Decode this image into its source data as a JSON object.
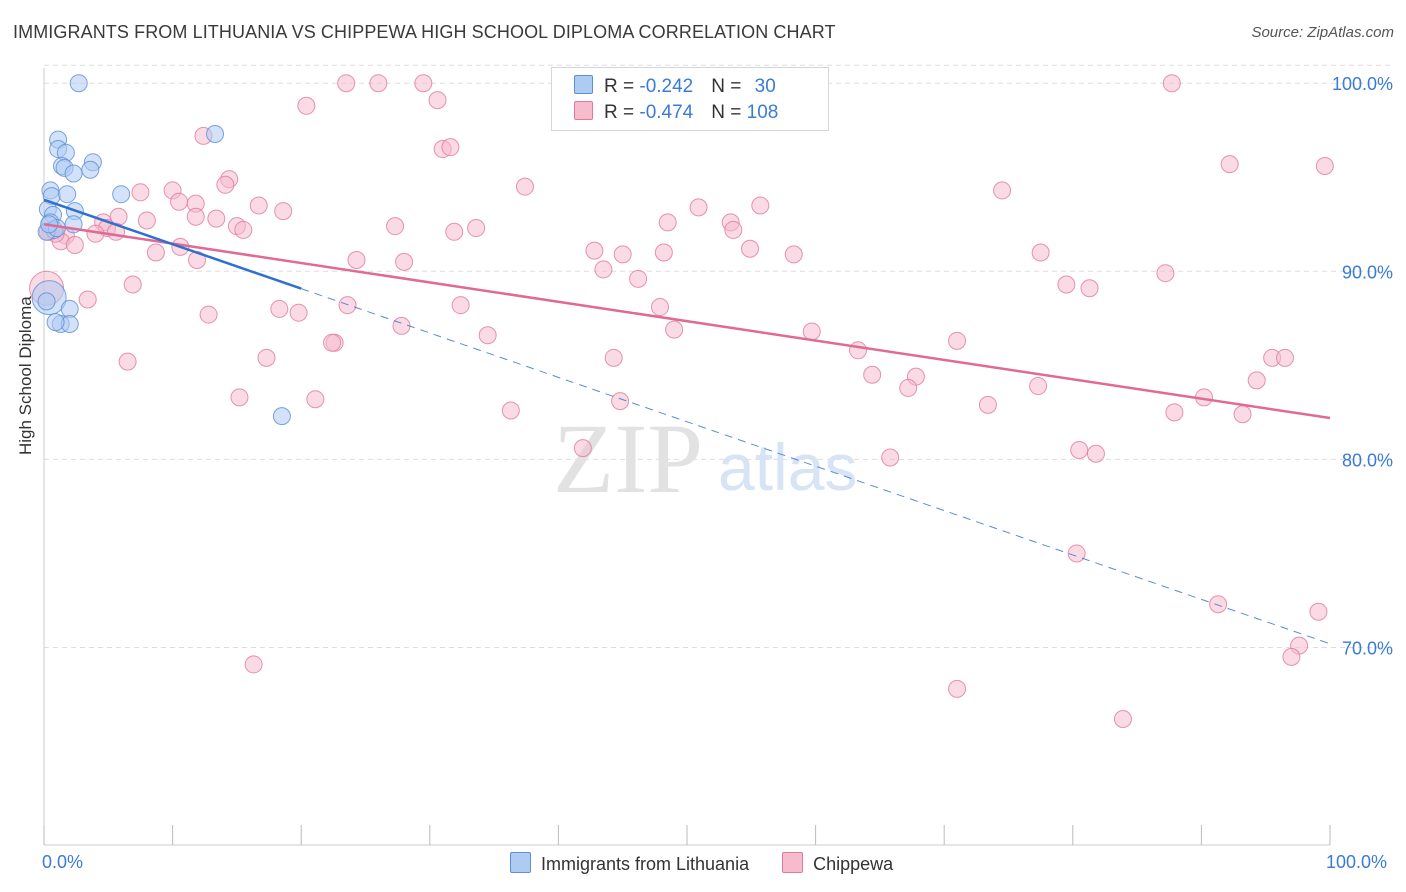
{
  "title": "IMMIGRANTS FROM LITHUANIA VS CHIPPEWA HIGH SCHOOL DIPLOMA CORRELATION CHART",
  "source": "Source: ZipAtlas.com",
  "watermark": {
    "zip": "ZIP",
    "atlas": "atlas"
  },
  "legend": {
    "r_label": "R = ",
    "n_label": "N = ",
    "series": [
      {
        "name": "Immigrants from Lithuania",
        "r": "-0.242",
        "n": "30"
      },
      {
        "name": "Chippewa",
        "r": "-0.474",
        "n": "108"
      }
    ]
  },
  "colors": {
    "blue_fill": "#aecbf2",
    "blue_stroke": "#5b8fd6",
    "blue_line": "#2f6fcf",
    "pink_fill": "#f6bccd",
    "pink_stroke": "#e07a9b",
    "pink_line": "#e06a93",
    "grid": "#dddddd",
    "tick_text": "#3a7bd5"
  },
  "chart_data": {
    "type": "scatter",
    "title": "IMMIGRANTS FROM LITHUANIA VS CHIPPEWA HIGH SCHOOL DIPLOMA CORRELATION CHART",
    "xlabel": "",
    "ylabel": "High School Diploma",
    "xlim": [
      0,
      100
    ],
    "ylim": [
      59.5,
      101.5
    ],
    "x_tick_labels": [
      "0.0%",
      "100.0%"
    ],
    "y_ticks": [
      70,
      80,
      90,
      100
    ],
    "y_tick_labels": [
      "70.0%",
      "80.0%",
      "90.0%",
      "100.0%"
    ],
    "grid": true,
    "legend_position": "top-center",
    "series": [
      {
        "name": "Immigrants from Lithuania",
        "r": -0.242,
        "n": 30,
        "trend": {
          "x0": 0,
          "y0": 93.8,
          "x1": 100,
          "y1": 70.2,
          "solid_until_x": 20
        },
        "points": [
          {
            "x": 2.7,
            "y": 100.0
          },
          {
            "x": 13.3,
            "y": 97.3
          },
          {
            "x": 1.1,
            "y": 97.0
          },
          {
            "x": 1.1,
            "y": 96.5
          },
          {
            "x": 1.7,
            "y": 96.3
          },
          {
            "x": 1.4,
            "y": 95.6
          },
          {
            "x": 1.6,
            "y": 95.5
          },
          {
            "x": 3.8,
            "y": 95.8
          },
          {
            "x": 3.6,
            "y": 95.4
          },
          {
            "x": 2.3,
            "y": 95.2
          },
          {
            "x": 0.5,
            "y": 94.3
          },
          {
            "x": 0.6,
            "y": 94.0
          },
          {
            "x": 1.8,
            "y": 94.1
          },
          {
            "x": 6.0,
            "y": 94.1
          },
          {
            "x": 0.3,
            "y": 93.3
          },
          {
            "x": 0.7,
            "y": 93.0
          },
          {
            "x": 2.4,
            "y": 93.2
          },
          {
            "x": 0.5,
            "y": 92.6
          },
          {
            "x": 0.8,
            "y": 92.2
          },
          {
            "x": 2.3,
            "y": 92.5
          },
          {
            "x": 0.2,
            "y": 92.1
          },
          {
            "x": 0.4,
            "y": 88.6,
            "size": "large"
          },
          {
            "x": 0.2,
            "y": 88.4
          },
          {
            "x": 2.0,
            "y": 88.0
          },
          {
            "x": 1.3,
            "y": 87.2
          },
          {
            "x": 2.0,
            "y": 87.2
          },
          {
            "x": 0.9,
            "y": 87.3
          },
          {
            "x": 18.5,
            "y": 82.3
          },
          {
            "x": 1.0,
            "y": 92.3
          },
          {
            "x": 0.4,
            "y": 92.5
          }
        ]
      },
      {
        "name": "Chippewa",
        "r": -0.474,
        "n": 108,
        "trend": {
          "x0": 0,
          "y0": 92.5,
          "x1": 100,
          "y1": 82.2
        },
        "points": [
          {
            "x": 23.5,
            "y": 100.0
          },
          {
            "x": 26.0,
            "y": 100.0
          },
          {
            "x": 29.5,
            "y": 100.0
          },
          {
            "x": 87.7,
            "y": 100.0
          },
          {
            "x": 30.6,
            "y": 99.1
          },
          {
            "x": 20.4,
            "y": 98.8
          },
          {
            "x": 12.4,
            "y": 97.2
          },
          {
            "x": 31.0,
            "y": 96.5
          },
          {
            "x": 31.6,
            "y": 96.6
          },
          {
            "x": 92.2,
            "y": 95.7
          },
          {
            "x": 99.6,
            "y": 95.6
          },
          {
            "x": 14.4,
            "y": 94.9
          },
          {
            "x": 14.1,
            "y": 94.6
          },
          {
            "x": 37.4,
            "y": 94.5
          },
          {
            "x": 10.0,
            "y": 94.3
          },
          {
            "x": 74.5,
            "y": 94.3
          },
          {
            "x": 7.5,
            "y": 94.2
          },
          {
            "x": 10.5,
            "y": 93.7
          },
          {
            "x": 11.8,
            "y": 93.6
          },
          {
            "x": 16.7,
            "y": 93.5
          },
          {
            "x": 18.6,
            "y": 93.2
          },
          {
            "x": 50.9,
            "y": 93.4
          },
          {
            "x": 55.7,
            "y": 93.5
          },
          {
            "x": 13.4,
            "y": 92.8
          },
          {
            "x": 5.8,
            "y": 92.9
          },
          {
            "x": 8.0,
            "y": 92.7
          },
          {
            "x": 4.6,
            "y": 92.6
          },
          {
            "x": 11.8,
            "y": 92.9
          },
          {
            "x": 48.5,
            "y": 92.6
          },
          {
            "x": 53.4,
            "y": 92.6
          },
          {
            "x": 15.0,
            "y": 92.4
          },
          {
            "x": 27.3,
            "y": 92.4
          },
          {
            "x": 31.9,
            "y": 92.1
          },
          {
            "x": 33.6,
            "y": 92.3
          },
          {
            "x": 4.9,
            "y": 92.3
          },
          {
            "x": 5.6,
            "y": 92.1
          },
          {
            "x": 4.0,
            "y": 92.0
          },
          {
            "x": 15.5,
            "y": 92.2
          },
          {
            "x": 53.6,
            "y": 92.2
          },
          {
            "x": 1.7,
            "y": 91.9
          },
          {
            "x": 1.3,
            "y": 91.6
          },
          {
            "x": 2.4,
            "y": 91.4
          },
          {
            "x": 0.5,
            "y": 92.1
          },
          {
            "x": 0.9,
            "y": 92.0
          },
          {
            "x": 10.6,
            "y": 91.3
          },
          {
            "x": 42.8,
            "y": 91.1
          },
          {
            "x": 48.2,
            "y": 91.0
          },
          {
            "x": 54.9,
            "y": 91.2
          },
          {
            "x": 8.7,
            "y": 91.0
          },
          {
            "x": 45.0,
            "y": 90.9
          },
          {
            "x": 58.3,
            "y": 90.9
          },
          {
            "x": 77.5,
            "y": 91.0
          },
          {
            "x": 11.9,
            "y": 90.6
          },
          {
            "x": 24.3,
            "y": 90.6
          },
          {
            "x": 28.0,
            "y": 90.5
          },
          {
            "x": 43.5,
            "y": 90.1
          },
          {
            "x": 46.2,
            "y": 89.6
          },
          {
            "x": 87.2,
            "y": 89.9
          },
          {
            "x": 6.9,
            "y": 89.3
          },
          {
            "x": 79.5,
            "y": 89.3
          },
          {
            "x": 81.3,
            "y": 89.1
          },
          {
            "x": 0.2,
            "y": 89.1,
            "size": "large"
          },
          {
            "x": 3.4,
            "y": 88.5
          },
          {
            "x": 23.6,
            "y": 88.2
          },
          {
            "x": 32.4,
            "y": 88.2
          },
          {
            "x": 47.9,
            "y": 88.1
          },
          {
            "x": 18.3,
            "y": 88.0
          },
          {
            "x": 19.8,
            "y": 87.8
          },
          {
            "x": 12.8,
            "y": 87.7
          },
          {
            "x": 27.8,
            "y": 87.1
          },
          {
            "x": 49.0,
            "y": 86.9
          },
          {
            "x": 59.7,
            "y": 86.8
          },
          {
            "x": 34.5,
            "y": 86.6
          },
          {
            "x": 22.6,
            "y": 86.2
          },
          {
            "x": 22.4,
            "y": 86.2
          },
          {
            "x": 71.0,
            "y": 86.3
          },
          {
            "x": 63.3,
            "y": 85.8
          },
          {
            "x": 17.3,
            "y": 85.4
          },
          {
            "x": 44.3,
            "y": 85.4
          },
          {
            "x": 95.5,
            "y": 85.4
          },
          {
            "x": 96.5,
            "y": 85.4
          },
          {
            "x": 6.5,
            "y": 85.2
          },
          {
            "x": 64.4,
            "y": 84.5
          },
          {
            "x": 67.8,
            "y": 84.4
          },
          {
            "x": 94.3,
            "y": 84.2
          },
          {
            "x": 77.3,
            "y": 83.9
          },
          {
            "x": 67.2,
            "y": 83.8
          },
          {
            "x": 15.2,
            "y": 83.3
          },
          {
            "x": 21.1,
            "y": 83.2
          },
          {
            "x": 90.2,
            "y": 83.3
          },
          {
            "x": 44.8,
            "y": 83.1
          },
          {
            "x": 73.4,
            "y": 82.9
          },
          {
            "x": 36.3,
            "y": 82.6
          },
          {
            "x": 87.9,
            "y": 82.5
          },
          {
            "x": 93.2,
            "y": 82.4
          },
          {
            "x": 41.9,
            "y": 80.6
          },
          {
            "x": 80.5,
            "y": 80.5
          },
          {
            "x": 81.8,
            "y": 80.3
          },
          {
            "x": 65.8,
            "y": 80.1
          },
          {
            "x": 80.3,
            "y": 75.0
          },
          {
            "x": 91.3,
            "y": 72.3
          },
          {
            "x": 99.1,
            "y": 71.9
          },
          {
            "x": 97.6,
            "y": 70.1
          },
          {
            "x": 97.0,
            "y": 69.5
          },
          {
            "x": 16.3,
            "y": 69.1
          },
          {
            "x": 71.0,
            "y": 67.8
          },
          {
            "x": 83.9,
            "y": 66.2
          },
          {
            "x": 0.3,
            "y": 92.1
          }
        ]
      }
    ]
  }
}
